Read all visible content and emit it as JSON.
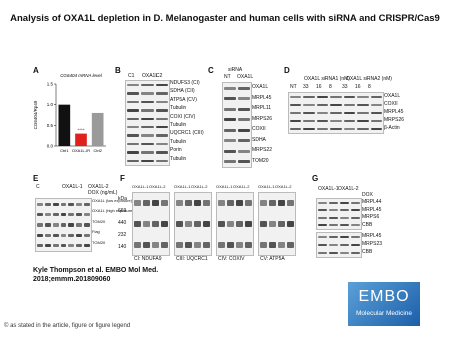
{
  "header": {
    "title": "Analysis of OXA1L depletion in D. Melanogaster and human cells with siRNA and CRISPR/Cas9"
  },
  "panels": {
    "A": {
      "label": "A",
      "chart_data": {
        "type": "bar",
        "title": "CG6404 mRNA level",
        "y_label": "CG6404/Rp49",
        "categories": [
          "Ctrl1",
          "OXA1L-IR",
          "Ctrl2"
        ],
        "values": [
          1.0,
          0.3,
          0.8
        ],
        "colors": [
          "#111111",
          "#e0201b",
          "#9a9a9a"
        ],
        "annotation": "****",
        "ylim": [
          0,
          1.5
        ],
        "yticks": [
          {
            "value": 0,
            "label": "0.0"
          },
          0.5,
          {
            "value": 1,
            "label": "1.0"
          },
          1.5
        ]
      }
    },
    "B": {
      "label": "B",
      "columns": [
        "C1",
        "OXA1L",
        "C2"
      ],
      "rows": [
        "NDUFS3 (CI)",
        "SDHA (CII)",
        "ATP5A (CV)",
        "Tubulin",
        "COXI (CIV)",
        "Tubulin",
        "UQCRC1 (CIII)",
        "Tubulin",
        "Porin",
        "Tubulin"
      ]
    },
    "C": {
      "label": "C",
      "heading": "siRNA",
      "columns": [
        "NT",
        "OXA1L"
      ],
      "rows": [
        "OXA1L",
        "MRPL45",
        "MRPL11",
        "MRPS26",
        "COXII",
        "SDHA",
        "MRPS22",
        "TOM20"
      ]
    },
    "D": {
      "label": "D",
      "headings": [
        "OXA1L siRNA1 (nM)",
        "OXA1L siRNA2 (nM)"
      ],
      "columns": [
        "NT",
        "33",
        "16",
        "8",
        "33",
        "16",
        "8"
      ],
      "rows": [
        "OXA1L",
        "COXII",
        "MRPL45",
        "MRPS26",
        "β-Actin"
      ]
    },
    "E": {
      "label": "E",
      "heading": "DOX (ng/mL)",
      "groups": [
        "C",
        "OXA1L-1",
        "OXA1L-2"
      ],
      "rows": [
        "OXA1L (low exposure)",
        "OXA1L (high exposure)",
        "TOM20",
        "Flag",
        "TOM20"
      ]
    },
    "F": {
      "label": "F",
      "groups": [
        "OXA1L-1",
        "OXA1L-2"
      ],
      "markers": [
        "kDa",
        "669",
        "440",
        "232",
        "140"
      ],
      "captions": [
        "CI: NDUFA9",
        "CIII: UQCRC1",
        "CIV: COXIV",
        "CV: ATP5A"
      ]
    },
    "G": {
      "label": "G",
      "groups": [
        "OXA1L-1",
        "OXA1L-2"
      ],
      "heading": "DOX",
      "rows": [
        "MRPL44",
        "MRPL45",
        "MRPS6",
        "CBB",
        "MRPL45",
        "MRPS23",
        "CBB"
      ]
    }
  },
  "citation": [
    "Kyle Thompson et al. EMBO Mol Med.",
    "2018;emmm.201809060"
  ],
  "footer": "© as stated in the article, figure or figure legend",
  "logo": {
    "name": "EMBO",
    "subtitle": "Molecular Medicine"
  }
}
